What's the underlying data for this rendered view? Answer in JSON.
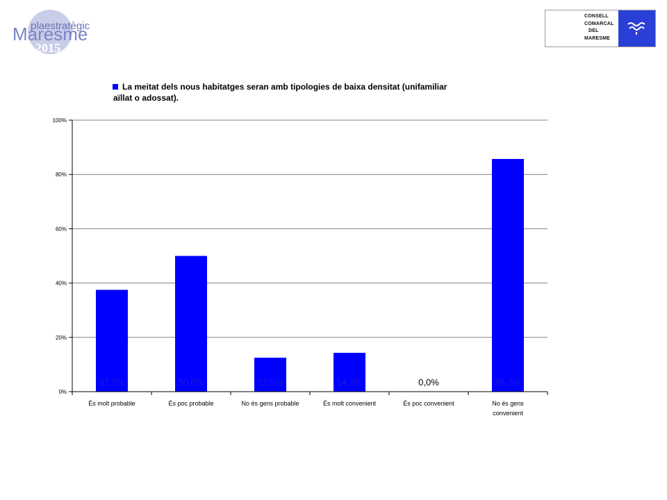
{
  "logos": {
    "left": {
      "line1": "plaestratègic",
      "line2": "Maresme",
      "line3": "2015"
    },
    "right": {
      "lines": [
        "CONSELL",
        "COMARCAL",
        "DEL",
        "MARESME"
      ],
      "accent": "#2a3fd6"
    }
  },
  "chart_data": {
    "type": "bar",
    "legend": {
      "position": "top",
      "entries": [
        "La meitat dels nous habitatges seran amb tipologies de baixa densitat (unifamiliar",
        "aïllat o adossat)."
      ]
    },
    "categories": [
      [
        "És molt probable"
      ],
      [
        "És poc probable"
      ],
      [
        "No és gens probable"
      ],
      [
        "És molt convenient"
      ],
      [
        "És poc convenient"
      ],
      [
        "No és gens",
        "convenient"
      ]
    ],
    "values": [
      0.375,
      0.5,
      0.125,
      0.143,
      0.0,
      0.857
    ],
    "data_labels": [
      "37,5%",
      "50,0%",
      "12,5%",
      "14,3%",
      "0,0%",
      "85,7%"
    ],
    "y_ticks": [
      "0%",
      "20%",
      "40%",
      "60%",
      "80%",
      "100%"
    ],
    "ylim": [
      0,
      1
    ],
    "grid": true,
    "bar_color": "#0000ff"
  }
}
